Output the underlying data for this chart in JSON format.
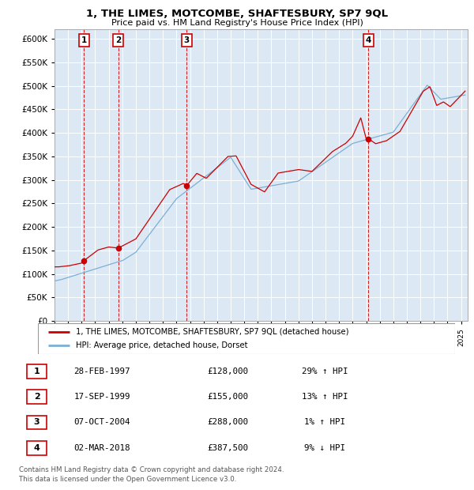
{
  "title": "1, THE LIMES, MOTCOMBE, SHAFTESBURY, SP7 9QL",
  "subtitle": "Price paid vs. HM Land Registry's House Price Index (HPI)",
  "ylim": [
    0,
    620000
  ],
  "yticks": [
    0,
    50000,
    100000,
    150000,
    200000,
    250000,
    300000,
    350000,
    400000,
    450000,
    500000,
    550000,
    600000
  ],
  "xlim_start": 1995.0,
  "xlim_end": 2025.5,
  "plot_bg": "#dce9f5",
  "red_line_color": "#cc0000",
  "blue_line_color": "#7bafd4",
  "sale_points": [
    {
      "year": 1997.16,
      "price": 128000,
      "label": "1"
    },
    {
      "year": 1999.71,
      "price": 155000,
      "label": "2"
    },
    {
      "year": 2004.76,
      "price": 288000,
      "label": "3"
    },
    {
      "year": 2018.17,
      "price": 387500,
      "label": "4"
    }
  ],
  "vline_years": [
    1997.16,
    1999.71,
    2004.76,
    2018.17
  ],
  "legend_line1": "1, THE LIMES, MOTCOMBE, SHAFTESBURY, SP7 9QL (detached house)",
  "legend_line2": "HPI: Average price, detached house, Dorset",
  "table_rows": [
    {
      "num": "1",
      "date": "28-FEB-1997",
      "price": "£128,000",
      "hpi": "29% ↑ HPI"
    },
    {
      "num": "2",
      "date": "17-SEP-1999",
      "price": "£155,000",
      "hpi": "13% ↑ HPI"
    },
    {
      "num": "3",
      "date": "07-OCT-2004",
      "price": "£288,000",
      "hpi": "1% ↑ HPI"
    },
    {
      "num": "4",
      "date": "02-MAR-2018",
      "price": "£387,500",
      "hpi": "9% ↓ HPI"
    }
  ],
  "footer": "Contains HM Land Registry data © Crown copyright and database right 2024.\nThis data is licensed under the Open Government Licence v3.0."
}
